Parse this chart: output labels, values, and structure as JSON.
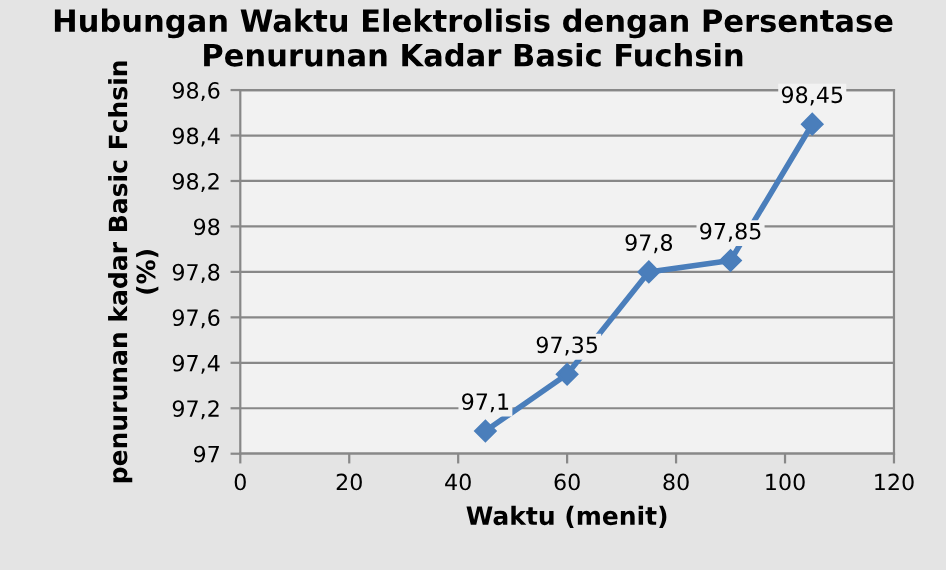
{
  "chart_data": {
    "type": "line",
    "title": "Hubungan Waktu Elektrolisis dengan Persentase\nPenurunan Kadar Basic Fuchsin",
    "xlabel": "Waktu (menit)",
    "ylabel": "penurunan kadar Basic Fchsin\n(%)",
    "x": [
      45,
      60,
      75,
      90,
      105
    ],
    "series": [
      {
        "color": "#4a7ebb",
        "values": [
          97.1,
          97.35,
          97.8,
          97.85,
          98.45
        ],
        "value_labels": [
          "97,1",
          "97,35",
          "97,8",
          "97,85",
          "98,45"
        ]
      }
    ],
    "xlim": [
      0,
      120
    ],
    "xticks": [
      0,
      20,
      40,
      60,
      80,
      100,
      120
    ],
    "ylim": [
      97,
      98.6
    ],
    "yticks": [
      97,
      {
        "value": 97.2,
        "label": "97,2"
      },
      {
        "value": 97.4,
        "label": "97,4"
      },
      {
        "value": 97.6,
        "label": "97,6"
      },
      {
        "value": 97.8,
        "label": "97,8"
      },
      98,
      {
        "value": 98.2,
        "label": "98,2"
      },
      {
        "value": 98.4,
        "label": "98,4"
      },
      {
        "value": 98.6,
        "label": "98,6"
      }
    ],
    "grid": "y",
    "marker": "diamond",
    "line_style": "solid",
    "legend": false
  }
}
